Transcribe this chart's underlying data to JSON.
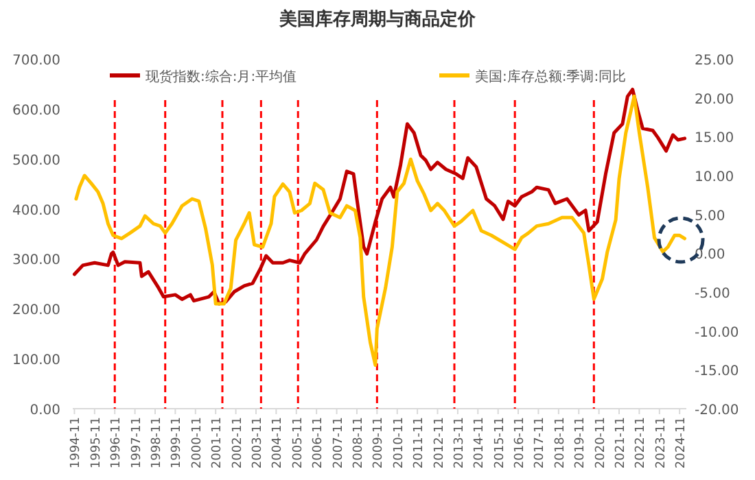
{
  "chart_data": {
    "type": "line",
    "title": "美国库存周期与商品定价",
    "xlim": [
      "1994-10",
      "2025-03"
    ],
    "xticks": [
      "1994-11",
      "1995-11",
      "1996-11",
      "1997-11",
      "1998-11",
      "1999-11",
      "2000-11",
      "2001-11",
      "2002-11",
      "2003-11",
      "2004-11",
      "2005-11",
      "2006-11",
      "2007-11",
      "2008-11",
      "2009-11",
      "2010-11",
      "2011-11",
      "2012-11",
      "2013-11",
      "2014-11",
      "2015-11",
      "2016-11",
      "2017-11",
      "2018-11",
      "2019-11",
      "2020-11",
      "2021-11",
      "2022-11",
      "2023-11",
      "2024-11"
    ],
    "ylim": [
      0,
      700
    ],
    "yticks": [
      {
        "value": 0,
        "label": "0.00"
      },
      {
        "value": 100,
        "label": "100.00"
      },
      {
        "value": 200,
        "label": "200.00"
      },
      {
        "value": 300,
        "label": "300.00"
      },
      {
        "value": 400,
        "label": "400.00"
      },
      {
        "value": 500,
        "label": "500.00"
      },
      {
        "value": 600,
        "label": "600.00"
      },
      {
        "value": 700,
        "label": "700.00"
      }
    ],
    "y2lim": [
      -20,
      25
    ],
    "y2ticks": [
      {
        "value": -20,
        "label": "-20.00"
      },
      {
        "value": -15,
        "label": "-15.00"
      },
      {
        "value": -10,
        "label": "-10.00"
      },
      {
        "value": -5,
        "label": "-5.00"
      },
      {
        "value": 0,
        "label": "0.00"
      },
      {
        "value": 5,
        "label": "5.00"
      },
      {
        "value": 10,
        "label": "10.00"
      },
      {
        "value": 15,
        "label": "15.00"
      },
      {
        "value": 20,
        "label": "20.00"
      },
      {
        "value": 25,
        "label": "25.00"
      }
    ],
    "grid": false,
    "legend": "top",
    "marker": "none",
    "line_style": "solid",
    "ref_lines": [
      {
        "axis": "x",
        "value": "1996-11",
        "color": "#ff0000",
        "line_style": "dashed"
      },
      {
        "axis": "x",
        "value": "1999-05",
        "color": "#ff0000",
        "line_style": "dashed"
      },
      {
        "axis": "x",
        "value": "2002-03",
        "color": "#ff0000",
        "line_style": "dashed"
      },
      {
        "axis": "x",
        "value": "2004-02",
        "color": "#ff0000",
        "line_style": "dashed"
      },
      {
        "axis": "x",
        "value": "2005-12",
        "color": "#ff0000",
        "line_style": "dashed"
      },
      {
        "axis": "x",
        "value": "2009-11",
        "color": "#ff0000",
        "line_style": "dashed"
      },
      {
        "axis": "x",
        "value": "2013-09",
        "color": "#ff0000",
        "line_style": "dashed"
      },
      {
        "axis": "x",
        "value": "2016-09",
        "color": "#ff0000",
        "line_style": "dashed"
      },
      {
        "axis": "x",
        "value": "2020-08",
        "color": "#ff0000",
        "line_style": "dashed"
      }
    ],
    "series": [
      {
        "name": "现货指数:综合:月:平均值",
        "color": "#c00000",
        "x": [
          "1994-11",
          "1995-04",
          "1995-11",
          "1996-07",
          "1996-09",
          "1996-10",
          "1997-01",
          "1997-05",
          "1998-02",
          "1998-03",
          "1998-07",
          "1999-01",
          "1999-04",
          "1999-11",
          "2000-03",
          "2000-08",
          "2000-10",
          "2001-07",
          "2001-10",
          "2002-01",
          "2002-05",
          "2002-10",
          "2003-04",
          "2003-09",
          "2004-02",
          "2004-05",
          "2004-09",
          "2005-03",
          "2005-07",
          "2006-01",
          "2006-04",
          "2006-11",
          "2007-03",
          "2007-08",
          "2008-01",
          "2008-05",
          "2008-09",
          "2008-11",
          "2009-03",
          "2009-05",
          "2009-10",
          "2010-02",
          "2010-07",
          "2010-09",
          "2011-01",
          "2011-05",
          "2011-09",
          "2012-01",
          "2012-04",
          "2012-07",
          "2012-11",
          "2013-04",
          "2013-10",
          "2014-02",
          "2014-05",
          "2014-10",
          "2015-04",
          "2015-09",
          "2016-02",
          "2016-05",
          "2016-09",
          "2017-01",
          "2017-07",
          "2017-10",
          "2018-05",
          "2018-09",
          "2019-04",
          "2019-11",
          "2020-03",
          "2020-05",
          "2020-10",
          "2021-03",
          "2021-08",
          "2022-01",
          "2022-04",
          "2022-07",
          "2022-10",
          "2023-01",
          "2023-07",
          "2023-10",
          "2024-03",
          "2024-07",
          "2024-10",
          "2025-02"
        ],
        "values": [
          269,
          287,
          292,
          287,
          310,
          313,
          287,
          294,
          292,
          265,
          274,
          242,
          224,
          228,
          219,
          228,
          216,
          224,
          234,
          210,
          214,
          234,
          246,
          251,
          283,
          306,
          292,
          292,
          297,
          292,
          310,
          338,
          365,
          392,
          420,
          475,
          470,
          420,
          324,
          310,
          374,
          420,
          443,
          424,
          488,
          570,
          552,
          507,
          497,
          479,
          493,
          479,
          470,
          461,
          502,
          484,
          420,
          406,
          379,
          415,
          406,
          424,
          434,
          443,
          438,
          411,
          420,
          388,
          397,
          356,
          374,
          470,
          552,
          570,
          625,
          639,
          598,
          561,
          557,
          543,
          516,
          548,
          538,
          541
        ]
      },
      {
        "name": "美国:库存总额:季调:同比",
        "color": "#ffc000",
        "axis": "y2",
        "x": [
          "1994-12",
          "1995-02",
          "1995-05",
          "1995-09",
          "1996-01",
          "1996-04",
          "1996-07",
          "1996-10",
          "1997-03",
          "1997-08",
          "1998-02",
          "1998-05",
          "1998-10",
          "1999-02",
          "1999-05",
          "1999-09",
          "2000-03",
          "2000-09",
          "2001-01",
          "2001-05",
          "2001-09",
          "2001-11",
          "2002-04",
          "2002-08",
          "2002-11",
          "2003-04",
          "2003-07",
          "2003-10",
          "2004-03",
          "2004-08",
          "2004-10",
          "2005-03",
          "2005-07",
          "2005-10",
          "2006-02",
          "2006-07",
          "2006-10",
          "2007-03",
          "2007-07",
          "2008-01",
          "2008-05",
          "2008-10",
          "2009-01",
          "2009-03",
          "2009-07",
          "2009-10",
          "2009-11",
          "2010-04",
          "2010-08",
          "2010-11",
          "2011-03",
          "2011-07",
          "2011-11",
          "2012-03",
          "2012-07",
          "2012-11",
          "2013-03",
          "2013-09",
          "2014-01",
          "2014-08",
          "2015-01",
          "2015-07",
          "2016-02",
          "2016-09",
          "2017-01",
          "2017-05",
          "2017-10",
          "2018-05",
          "2019-01",
          "2019-07",
          "2020-02",
          "2020-05",
          "2020-08",
          "2021-01",
          "2021-04",
          "2021-09",
          "2021-11",
          "2022-03",
          "2022-08",
          "2022-11",
          "2023-04",
          "2023-08",
          "2024-01",
          "2024-04",
          "2024-08",
          "2024-11",
          "2025-02"
        ],
        "values": [
          7.0,
          8.5,
          10.0,
          9.0,
          7.9,
          6.4,
          3.8,
          2.3,
          1.9,
          2.6,
          3.5,
          4.8,
          3.8,
          3.5,
          2.6,
          3.8,
          6.1,
          7.0,
          6.7,
          3.2,
          -1.5,
          -6.5,
          -6.5,
          -4.5,
          1.7,
          3.8,
          5.2,
          1.1,
          0.8,
          3.8,
          7.3,
          8.9,
          7.9,
          5.2,
          5.5,
          6.4,
          9.0,
          8.2,
          5.2,
          4.6,
          6.1,
          5.5,
          2.0,
          -5.6,
          -11.5,
          -14.4,
          -9.7,
          -4.5,
          0.8,
          7.9,
          9.0,
          12.1,
          9.3,
          7.6,
          5.5,
          6.4,
          5.5,
          3.5,
          4.1,
          5.5,
          2.9,
          2.3,
          1.4,
          0.5,
          2.0,
          2.6,
          3.5,
          3.8,
          4.6,
          4.6,
          2.6,
          -1.5,
          -5.9,
          -3.3,
          0.2,
          4.3,
          9.6,
          15.5,
          20.2,
          15.5,
          8.5,
          2.0,
          0.2,
          0.8,
          2.3,
          2.3,
          1.9
        ]
      }
    ]
  }
}
